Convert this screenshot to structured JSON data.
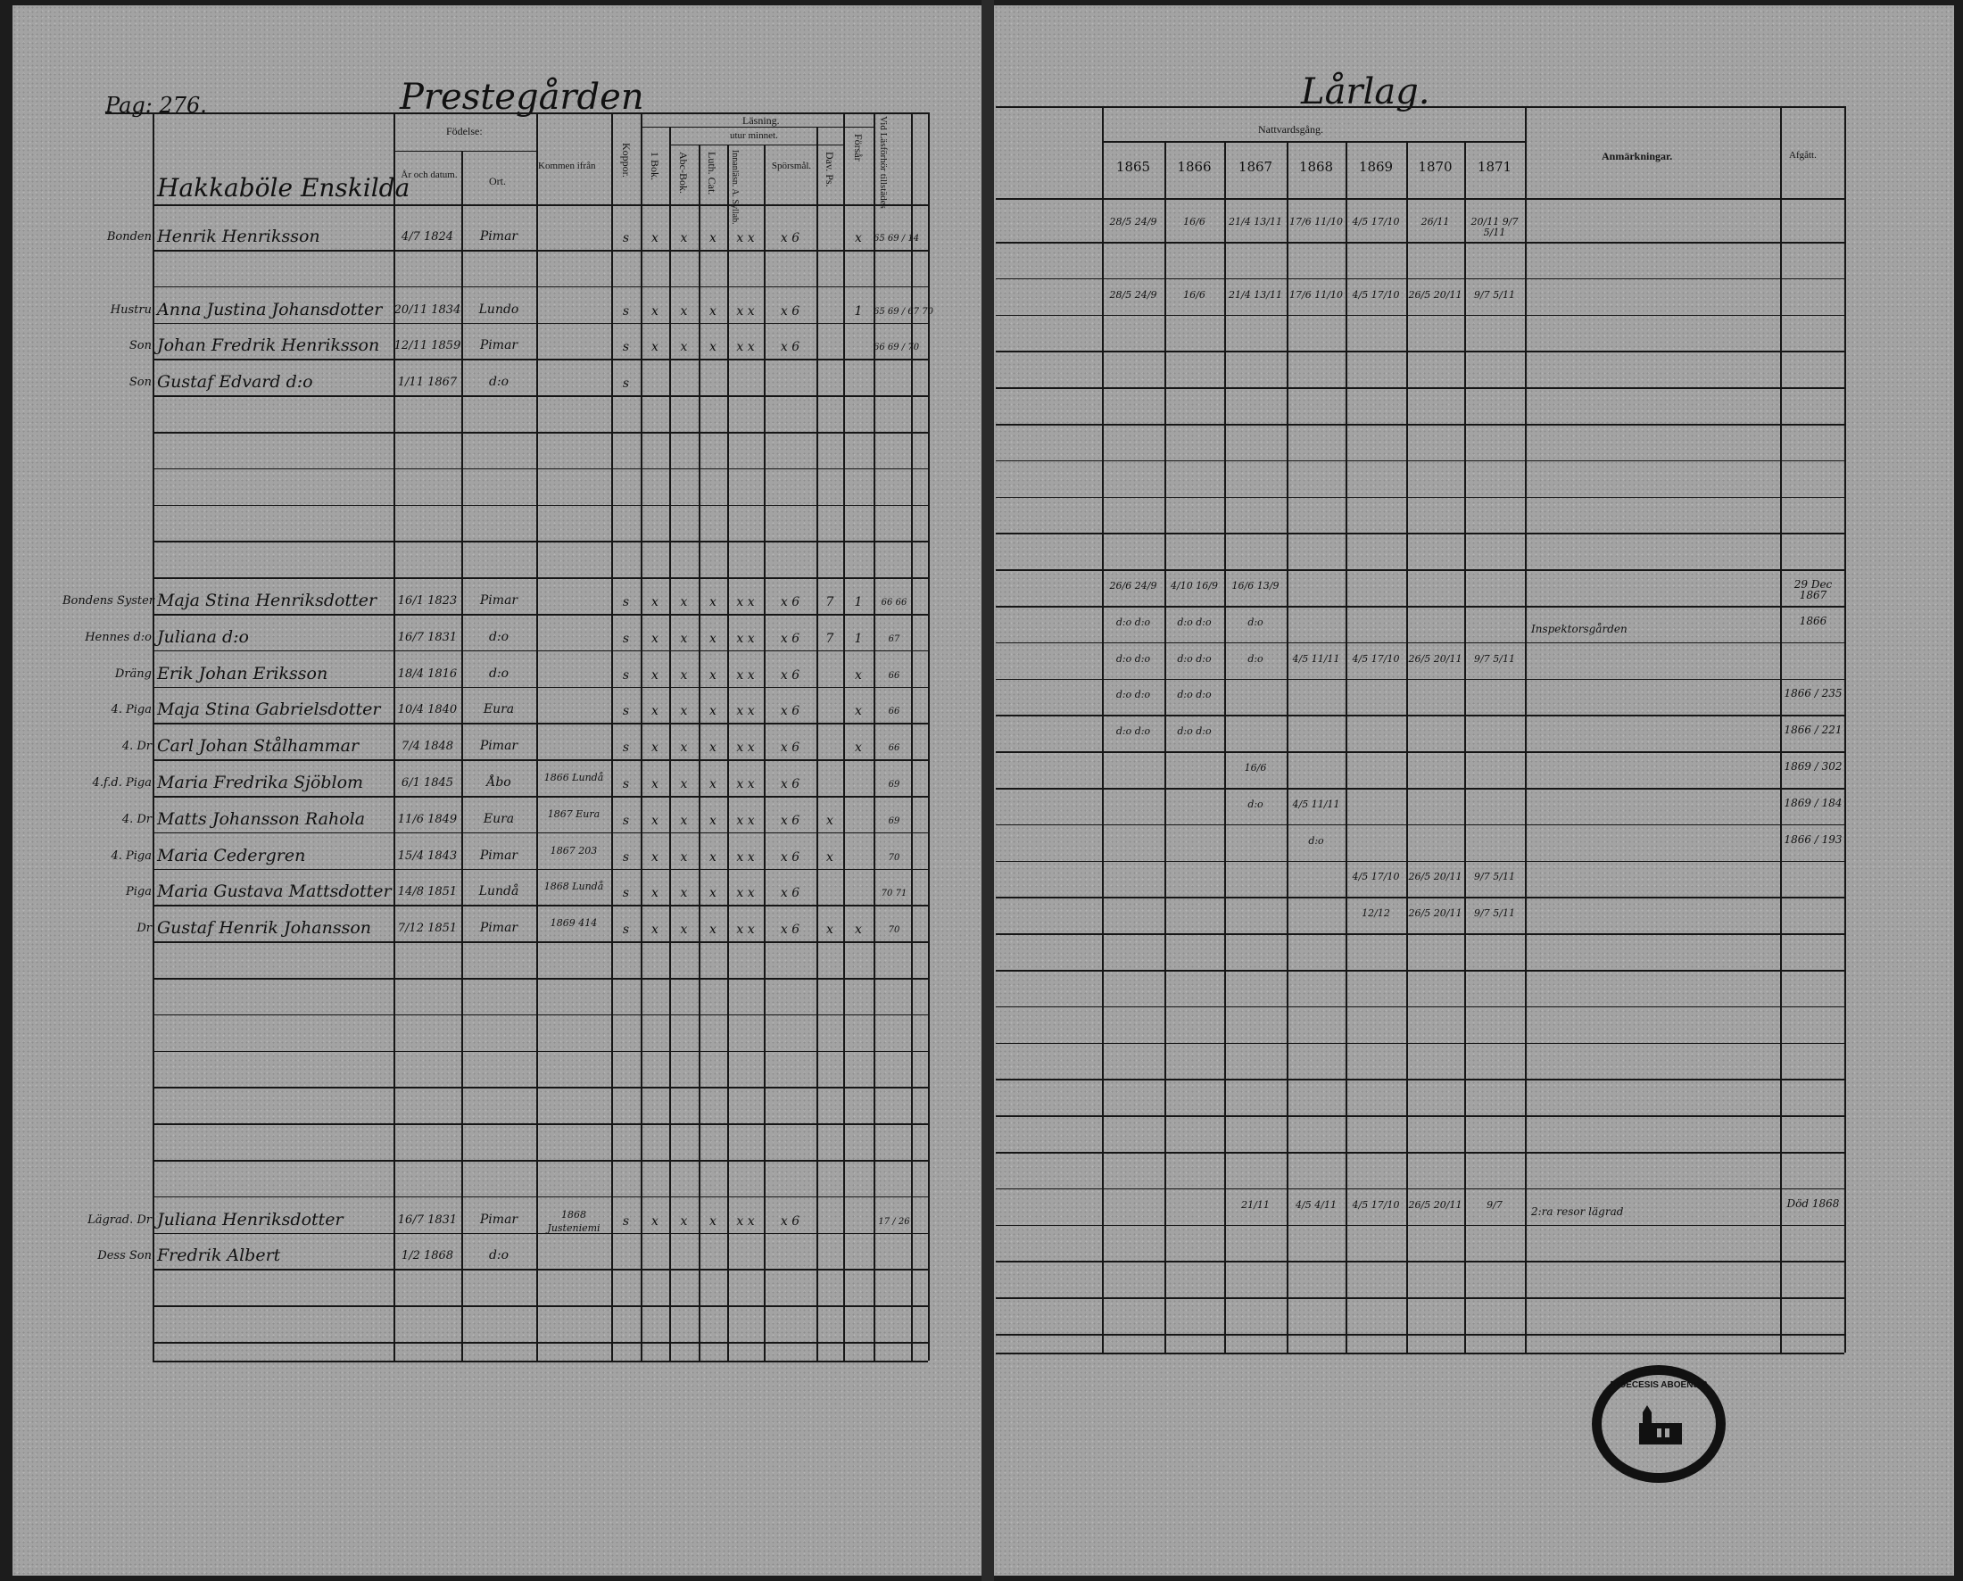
{
  "left_page": {
    "page_number": "Pag: 276.",
    "title": "Prestegården",
    "section_heading": "Hakkaböle Enskilda",
    "headers": {
      "birth": "Födelse:",
      "birth_date": "År och datum.",
      "birth_place": "Ort.",
      "came_from": "Kommen ifrån",
      "smallpox": "Koppor.",
      "reading": "Läsning.",
      "by_heart": "utur minnet.",
      "book1": "1 Bok.",
      "abc": "Abc-Bok.",
      "luth": "Luth. Cat.",
      "innan": "Innanläsn. A. Syllab.",
      "questions": "Spörsmål.",
      "dav": "Dav. Ps.",
      "forsar": "Försår",
      "exam": "Vid Läsförhör tillstädes"
    },
    "rows": [
      {
        "row": 0,
        "role": "Bonden",
        "name": "Henrik Henriksson",
        "born": "4/7 1824",
        "place": "Pimar",
        "came": "",
        "marks": [
          "s",
          "x",
          "x",
          "x",
          "x x",
          "x 6",
          "",
          "x",
          "65 69 / 14"
        ]
      },
      {
        "row": 2,
        "role": "Hustru",
        "name": "Anna Justina Johansdotter",
        "born": "20/11 1834",
        "place": "Lundo",
        "came": "",
        "marks": [
          "s",
          "x",
          "x",
          "x",
          "x x",
          "x 6",
          "",
          "1",
          "65 69 / 67 70"
        ]
      },
      {
        "row": 3,
        "role": "Son",
        "name": "Johan Fredrik Henriksson",
        "born": "12/11 1859",
        "place": "Pimar",
        "came": "",
        "marks": [
          "s",
          "x",
          "x",
          "x",
          "x x",
          "x 6",
          "",
          "",
          "66 69 / 70"
        ]
      },
      {
        "row": 4,
        "role": "Son",
        "name": "Gustaf Edvard d:o",
        "born": "1/11 1867",
        "place": "d:o",
        "came": "",
        "marks": [
          "s",
          "",
          "",
          "",
          "",
          "",
          "",
          "",
          ""
        ]
      },
      {
        "row": 10,
        "role": "Bondens Syster",
        "name": "Maja Stina Henriksdotter",
        "born": "16/1 1823",
        "place": "Pimar",
        "came": "",
        "marks": [
          "s",
          "x",
          "x",
          "x",
          "x x",
          "x 6",
          "7",
          "1",
          "66 66"
        ]
      },
      {
        "row": 11,
        "role": "Hennes d:o",
        "name": "Juliana d:o",
        "born": "16/7 1831",
        "place": "d:o",
        "came": "",
        "marks": [
          "s",
          "x",
          "x",
          "x",
          "x x",
          "x 6",
          "7",
          "1",
          "67"
        ]
      },
      {
        "row": 12,
        "role": "Dräng",
        "name": "Erik Johan Eriksson",
        "born": "18/4 1816",
        "place": "d:o",
        "came": "",
        "marks": [
          "s",
          "x",
          "x",
          "x",
          "x x",
          "x 6",
          "",
          "x",
          "66"
        ]
      },
      {
        "row": 13,
        "role": "4. Piga",
        "name": "Maja Stina Gabrielsdotter",
        "born": "10/4 1840",
        "place": "Eura",
        "came": "",
        "marks": [
          "s",
          "x",
          "x",
          "x",
          "x x",
          "x 6",
          "",
          "x",
          "66"
        ]
      },
      {
        "row": 14,
        "role": "4. Dr",
        "name": "Carl Johan Stålhammar",
        "born": "7/4 1848",
        "place": "Pimar",
        "came": "",
        "marks": [
          "s",
          "x",
          "x",
          "x",
          "x x",
          "x 6",
          "",
          "x",
          "66"
        ]
      },
      {
        "row": 15,
        "role": "4.f.d. Piga",
        "name": "Maria Fredrika Sjöblom",
        "born": "6/1 1845",
        "place": "Åbo",
        "came": "1866 Lundå",
        "marks": [
          "s",
          "x",
          "x",
          "x",
          "x x",
          "x 6",
          "",
          "",
          "69"
        ]
      },
      {
        "row": 16,
        "role": "4. Dr",
        "name": "Matts Johansson Rahola",
        "born": "11/6 1849",
        "place": "Eura",
        "came": "1867 Eura",
        "marks": [
          "s",
          "x",
          "x",
          "x",
          "x x",
          "x 6",
          "x",
          "",
          "69"
        ]
      },
      {
        "row": 17,
        "role": "4. Piga",
        "name": "Maria Cedergren",
        "born": "15/4 1843",
        "place": "Pimar",
        "came": "1867 203",
        "marks": [
          "s",
          "x",
          "x",
          "x",
          "x x",
          "x 6",
          "x",
          "",
          "70"
        ]
      },
      {
        "row": 18,
        "role": "Piga",
        "name": "Maria Gustava Mattsdotter",
        "born": "14/8 1851",
        "place": "Lundå",
        "came": "1868 Lundå",
        "marks": [
          "s",
          "x",
          "x",
          "x",
          "x x",
          "x 6",
          "",
          "",
          "70 71"
        ]
      },
      {
        "row": 19,
        "role": "Dr",
        "name": "Gustaf Henrik Johansson",
        "born": "7/12 1851",
        "place": "Pimar",
        "came": "1869 414",
        "marks": [
          "s",
          "x",
          "x",
          "x",
          "x x",
          "x 6",
          "x",
          "x",
          "70"
        ]
      },
      {
        "row": 27,
        "role": "Lägrad. Dr",
        "name": "Juliana Henriksdotter",
        "born": "16/7 1831",
        "place": "Pimar",
        "came": "1868 Justeniemi",
        "marks": [
          "s",
          "x",
          "x",
          "x",
          "x x",
          "x 6",
          "",
          "",
          "17 / 26"
        ]
      },
      {
        "row": 28,
        "role": "Dess Son",
        "name": "Fredrik Albert",
        "born": "1/2 1868",
        "place": "d:o",
        "came": "",
        "marks": [
          "",
          "",
          "",
          "",
          "",
          "",
          "",
          "",
          ""
        ]
      }
    ]
  },
  "right_page": {
    "title": "Lårlag.",
    "headers": {
      "communion": "Nattvardsgång.",
      "remarks": "Anmärkningar.",
      "departed": "Afgått."
    },
    "years": [
      "1865",
      "1866",
      "1867",
      "1868",
      "1869",
      "1870",
      "1871"
    ],
    "rows": [
      {
        "row": 0,
        "dates": [
          "28/5 24/9",
          "16/6",
          "21/4 13/11",
          "17/6 11/10",
          "4/5 17/10",
          "26/11",
          "20/11 9/7 5/11"
        ],
        "remark": "",
        "departed": ""
      },
      {
        "row": 2,
        "dates": [
          "28/5 24/9",
          "16/6",
          "21/4 13/11",
          "17/6 11/10",
          "4/5 17/10",
          "26/5 20/11",
          "9/7 5/11"
        ],
        "remark": "",
        "departed": ""
      },
      {
        "row": 10,
        "dates": [
          "26/6 24/9",
          "4/10 16/9",
          "16/6 13/9",
          "",
          "",
          "",
          ""
        ],
        "remark": "",
        "departed": "29 Dec 1867"
      },
      {
        "row": 11,
        "dates": [
          "d:o d:o",
          "d:o d:o",
          "d:o",
          "",
          "",
          "",
          ""
        ],
        "remark": "Inspektorsgården",
        "departed": "1866"
      },
      {
        "row": 12,
        "dates": [
          "d:o d:o",
          "d:o d:o",
          "d:o",
          "4/5 11/11",
          "4/5 17/10",
          "26/5 20/11",
          "9/7 5/11"
        ],
        "remark": "",
        "departed": ""
      },
      {
        "row": 13,
        "dates": [
          "d:o d:o",
          "d:o d:o",
          "",
          "",
          "",
          "",
          ""
        ],
        "remark": "",
        "departed": "1866 / 235"
      },
      {
        "row": 14,
        "dates": [
          "d:o d:o",
          "d:o d:o",
          "",
          "",
          "",
          "",
          ""
        ],
        "remark": "",
        "departed": "1866 / 221"
      },
      {
        "row": 15,
        "dates": [
          "",
          "",
          "16/6",
          "",
          "",
          "",
          ""
        ],
        "remark": "",
        "departed": "1869 / 302"
      },
      {
        "row": 16,
        "dates": [
          "",
          "",
          "d:o",
          "4/5 11/11",
          "",
          "",
          ""
        ],
        "remark": "",
        "departed": "1869 / 184"
      },
      {
        "row": 17,
        "dates": [
          "",
          "",
          "",
          "d:o",
          "",
          "",
          ""
        ],
        "remark": "",
        "departed": "1866 / 193"
      },
      {
        "row": 18,
        "dates": [
          "",
          "",
          "",
          "",
          "4/5 17/10",
          "26/5 20/11",
          "9/7 5/11"
        ],
        "remark": "",
        "departed": ""
      },
      {
        "row": 19,
        "dates": [
          "",
          "",
          "",
          "",
          "12/12",
          "26/5 20/11",
          "9/7 5/11"
        ],
        "remark": "",
        "departed": ""
      },
      {
        "row": 27,
        "dates": [
          "",
          "",
          "21/11",
          "4/5 4/11",
          "4/5 17/10",
          "26/5 20/11",
          "9/7"
        ],
        "remark": "2:ra resor lägrad",
        "departed": "Död 1868"
      }
    ],
    "stamp_text": "DIOECESIS ABOENSIS"
  }
}
